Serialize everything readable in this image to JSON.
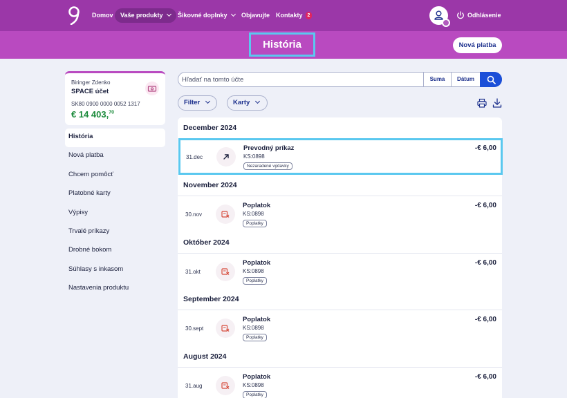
{
  "nav": {
    "items": [
      {
        "label": "Domov"
      },
      {
        "label": "Vaše produkty"
      },
      {
        "label": "Šikovné doplnky"
      },
      {
        "label": "Objavujte"
      },
      {
        "label": "Kontakty"
      }
    ],
    "contacts_badge": "2",
    "logout_label": "Odhlásenie"
  },
  "header": {
    "title": "História",
    "new_payment_label": "Nová platba"
  },
  "account": {
    "holder": "Biringer Zdenko",
    "product": "SPACE účet",
    "iban": "SK80 0900 0000 0052 1317",
    "balance_main": "€ 14 403,",
    "balance_cents": "70"
  },
  "side_menu": {
    "items": [
      {
        "label": "História"
      },
      {
        "label": "Nová platba"
      },
      {
        "label": "Chcem pomôcť"
      },
      {
        "label": "Platobné karty"
      },
      {
        "label": "Výpisy"
      },
      {
        "label": "Trvalé príkazy"
      },
      {
        "label": "Drobné bokom"
      },
      {
        "label": "Súhlasy s inkasom"
      },
      {
        "label": "Nastavenia produktu"
      }
    ]
  },
  "search": {
    "placeholder": "Hľadať na tomto účte",
    "sum_label": "Suma",
    "date_label": "Dátum"
  },
  "filters": {
    "filter_label": "Filter",
    "cards_label": "Karty"
  },
  "transactions": {
    "groups": [
      {
        "month": "December 2024",
        "date": "31.dec",
        "title": "Prevodný príkaz",
        "ks": "KS:0898",
        "tag": "Nezaradené výdavky",
        "amount": "-€ 6,00"
      },
      {
        "month": "November 2024",
        "date": "30.nov",
        "title": "Poplatok",
        "ks": "KS:0898",
        "tag": "Poplatky",
        "amount": "-€ 6,00"
      },
      {
        "month": "Október 2024",
        "date": "31.okt",
        "title": "Poplatok",
        "ks": "KS:0898",
        "tag": "Poplatky",
        "amount": "-€ 6,00"
      },
      {
        "month": "September 2024",
        "date": "30.sept",
        "title": "Poplatok",
        "ks": "KS:0898",
        "tag": "Poplatky",
        "amount": "-€ 6,00"
      },
      {
        "month": "August 2024",
        "date": "31.aug",
        "title": "Poplatok",
        "ks": "KS:0898",
        "tag": "Poplatky",
        "amount": "-€ 6,00"
      }
    ]
  },
  "colors": {
    "brand_purple": "#9b37a8",
    "header_purple": "#b94ac0",
    "primary_blue": "#1b4fd8",
    "highlight": "#5ac8ef",
    "balance_green": "#1a8a3a"
  }
}
